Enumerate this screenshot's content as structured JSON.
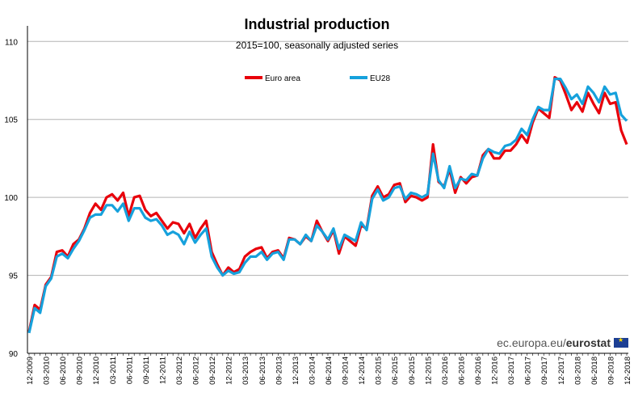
{
  "chart_data": {
    "type": "line",
    "title": "Industrial production",
    "subtitle": "2015=100, seasonally adjusted series",
    "ylim": [
      90,
      111
    ],
    "yticks": [
      90,
      95,
      100,
      105,
      110
    ],
    "grid": true,
    "legend": "top-center",
    "x_tick_labels": [
      "12-2009",
      "03-2010",
      "06-2010",
      "09-2010",
      "12-2010",
      "03-2011",
      "06-2011",
      "09-2011",
      "12-2011",
      "03-2012",
      "06-2012",
      "09-2012",
      "12-2012",
      "03-2013",
      "06-2013",
      "09-2013",
      "12-2013",
      "03-2014",
      "06-2014",
      "09-2014",
      "12-2014",
      "03-2015",
      "06-2015",
      "09-2015",
      "12-2015",
      "03-2016",
      "06-2016",
      "09-2016",
      "12-2016",
      "03-2017",
      "06-2017",
      "09-2017",
      "12-2017",
      "03-2018",
      "06-2018",
      "09-2018",
      "12-2018"
    ],
    "series": [
      {
        "name": "Euro area",
        "color": "#e8000b",
        "values": [
          91.4,
          93.1,
          92.8,
          94.4,
          94.9,
          96.5,
          96.6,
          96.2,
          97.0,
          97.3,
          98.0,
          99.0,
          99.6,
          99.2,
          100.0,
          100.2,
          99.8,
          100.3,
          98.8,
          100.0,
          100.1,
          99.2,
          98.8,
          99.0,
          98.5,
          98.0,
          98.4,
          98.3,
          97.7,
          98.3,
          97.4,
          98.0,
          98.5,
          96.5,
          95.7,
          95.0,
          95.5,
          95.2,
          95.4,
          96.2,
          96.5,
          96.7,
          96.8,
          96.1,
          96.5,
          96.6,
          96.1,
          97.4,
          97.3,
          97.0,
          97.5,
          97.2,
          98.5,
          97.8,
          97.2,
          97.9,
          96.4,
          97.5,
          97.2,
          96.9,
          98.2,
          98.0,
          100.1,
          100.7,
          100.0,
          100.2,
          100.8,
          100.9,
          99.7,
          100.1,
          100.0,
          99.8,
          100.0,
          103.4,
          101.0,
          100.7,
          101.8,
          100.3,
          101.3,
          100.9,
          101.3,
          101.4,
          102.7,
          103.1,
          102.5,
          102.5,
          103.0,
          103.0,
          103.4,
          104.0,
          103.5,
          104.8,
          105.7,
          105.4,
          105.1,
          107.7,
          107.5,
          106.6,
          105.6,
          106.1,
          105.5,
          106.7,
          106.0,
          105.4,
          106.7,
          106.0,
          106.1,
          104.3,
          103.4
        ]
      },
      {
        "name": "EU28",
        "color": "#16a1dc",
        "values": [
          91.3,
          92.9,
          92.6,
          94.3,
          94.8,
          96.2,
          96.4,
          96.1,
          96.7,
          97.2,
          97.9,
          98.7,
          98.9,
          98.9,
          99.5,
          99.5,
          99.1,
          99.6,
          98.5,
          99.3,
          99.3,
          98.7,
          98.5,
          98.6,
          98.2,
          97.6,
          97.8,
          97.6,
          97.0,
          97.8,
          97.1,
          97.6,
          98.0,
          96.2,
          95.5,
          95.0,
          95.3,
          95.1,
          95.2,
          95.8,
          96.2,
          96.2,
          96.5,
          96.0,
          96.4,
          96.5,
          96.0,
          97.3,
          97.3,
          97.0,
          97.6,
          97.2,
          98.2,
          97.8,
          97.3,
          98.0,
          96.7,
          97.6,
          97.4,
          97.2,
          98.4,
          97.9,
          99.9,
          100.5,
          99.8,
          100.0,
          100.6,
          100.7,
          99.9,
          100.3,
          100.2,
          100.0,
          100.2,
          102.8,
          101.1,
          100.6,
          102.0,
          100.6,
          101.2,
          101.1,
          101.5,
          101.4,
          102.5,
          103.1,
          102.9,
          102.8,
          103.3,
          103.4,
          103.7,
          104.4,
          104.0,
          105.0,
          105.8,
          105.6,
          105.6,
          107.6,
          107.6,
          107.0,
          106.3,
          106.6,
          106.0,
          107.1,
          106.7,
          106.1,
          107.1,
          106.6,
          106.7,
          105.3,
          104.9
        ]
      }
    ]
  },
  "watermark": {
    "prefix": "ec.europa.eu/",
    "brand": "eurostat",
    "flag_icon": "eu-flag-icon"
  }
}
